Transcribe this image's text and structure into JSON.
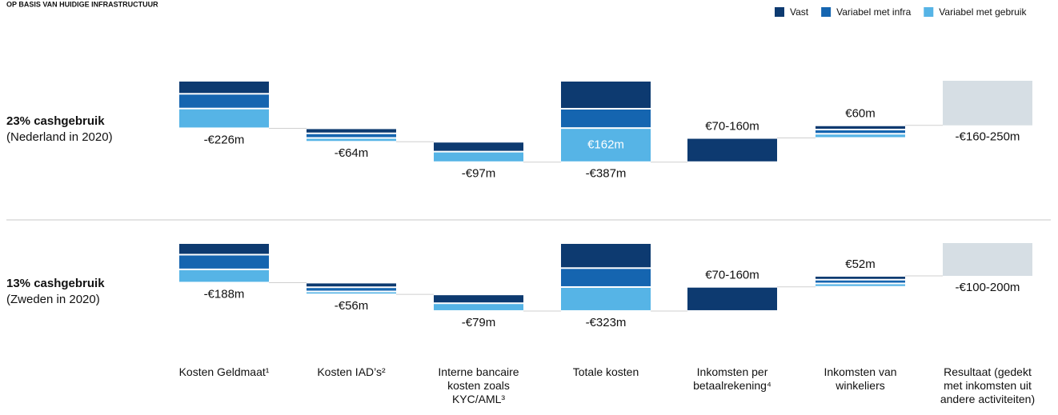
{
  "title": "OP BASIS VAN HUIDIGE INFRASTRUCTUUR",
  "chart_data": [
    {
      "type": "waterfall",
      "row_title": "23% cashgebruik",
      "row_subtitle": "(Nederland in 2020)",
      "measure": [
        "relative",
        "relative",
        "relative",
        "total",
        "relative",
        "relative",
        "total"
      ],
      "series": [
        {
          "name": "Vast",
          "color": "#0d3a70",
          "values": [
            -62,
            -24,
            -47,
            -133,
            115,
            20,
            null
          ]
        },
        {
          "name": "Variabel met infra",
          "color": "#1565b0",
          "values": [
            -70,
            -22,
            null,
            -92,
            null,
            20,
            null
          ]
        },
        {
          "name": "Variabel met gebruik",
          "color": "#56b4e6",
          "values": [
            -94,
            -18,
            -50,
            -162,
            null,
            20,
            null
          ],
          "value_labels": [
            null,
            null,
            null,
            "€162m",
            null,
            null,
            null
          ]
        }
      ],
      "result": {
        "value": -212,
        "color": "#d6dee4"
      },
      "value_labels": [
        "-€226m",
        "-€64m",
        "-€97m",
        "-€387m",
        "€70-160m",
        "€60m",
        "-€160-250m"
      ]
    },
    {
      "type": "waterfall",
      "row_title": "13% cashgebruik",
      "row_subtitle": "(Zweden in 2020)",
      "measure": [
        "relative",
        "relative",
        "relative",
        "total",
        "relative",
        "relative",
        "total"
      ],
      "series": [
        {
          "name": "Vast",
          "color": "#0d3a70",
          "values": [
            -55,
            -22,
            -42,
            -119,
            115,
            18,
            null
          ]
        },
        {
          "name": "Variabel met infra",
          "color": "#1565b0",
          "values": [
            -70,
            -20,
            null,
            -90,
            null,
            18,
            null
          ]
        },
        {
          "name": "Variabel met gebruik",
          "color": "#56b4e6",
          "values": [
            -63,
            -14,
            -37,
            -114,
            null,
            16,
            null
          ]
        }
      ],
      "result": {
        "value": -156,
        "color": "#d6dee4"
      },
      "value_labels": [
        "-€188m",
        "-€56m",
        "-€79m",
        "-€323m",
        "€70-160m",
        "€52m",
        "-€100-200m"
      ],
      "categories": [
        "Kosten Geldmaat¹",
        "Kosten IAD’s²",
        "Interne bancaire\nkosten zoals\nKYC/AML³",
        "Totale kosten",
        "Inkomsten per\nbetaalrekening⁴",
        "Inkomsten van\nwinkeliers",
        "Resultaat (gedekt\nmet inkomsten uit\nandere activiteiten)"
      ]
    }
  ]
}
